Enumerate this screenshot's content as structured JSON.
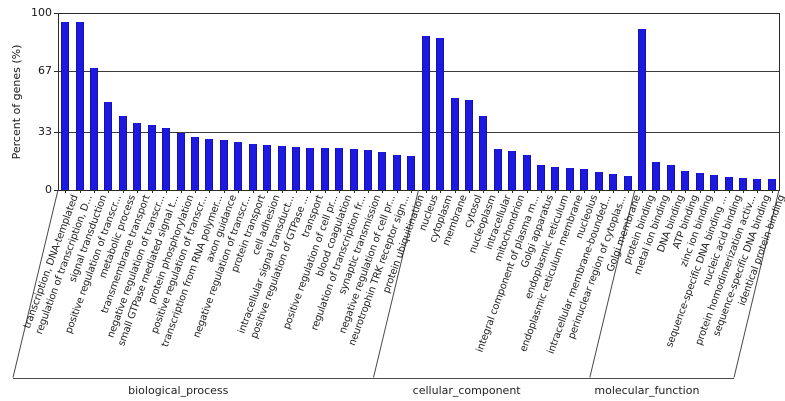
{
  "chart": {
    "bar_color": "#1e19e0",
    "bar_edge_color": "#1412a8",
    "axis_color": "#2b2b2b"
  },
  "chart_data": {
    "type": "bar",
    "title": "",
    "xlabel": "",
    "ylabel": "Percent of genes (%)",
    "ylim": [
      0,
      100
    ],
    "yticks": [
      0,
      33,
      67,
      100
    ],
    "grid": "horizontal",
    "legend_position": "none",
    "groups": [
      {
        "name": "biological_process",
        "categories": [
          "transcription, DNA-templated",
          "regulation of transcription, D...",
          "signal transduction",
          "positive regulation of transcr...",
          "metabolic process",
          "transmembrane transport",
          "negative regulation of transcr...",
          "small GTPase mediated signal t...",
          "protein phosphorylation",
          "positive regulation of transcr...",
          "transcription from RNA polymer...",
          "axon guidance",
          "negative regulation of transcr...",
          "protein transport",
          "cell adhesion",
          "intracellular signal transduct...",
          "positive regulation of GTPase ...",
          "transport",
          "positive regulation of cell pr...",
          "blood coagulation",
          "regulation of transcription fr...",
          "synaptic transmission",
          "negative regulation of cell pr...",
          "neurotrophin TRK receptor sign...",
          "protein ubiquitination"
        ],
        "values": [
          95,
          95,
          69,
          50,
          42,
          38,
          37,
          35,
          32,
          30,
          29,
          28,
          27,
          26,
          25.5,
          25,
          24.5,
          24,
          24,
          23.5,
          23,
          22.5,
          21.5,
          20,
          19
        ]
      },
      {
        "name": "cellular_component",
        "categories": [
          "nucleus",
          "cytoplasm",
          "membrane",
          "cytosol",
          "nucleoplasm",
          "intracellular",
          "mitochondrion",
          "integral component of plasma m...",
          "Golgi apparatus",
          "endoplasmic reticulum",
          "endoplasmic reticulum membrane",
          "nucleolus",
          "intracellular membrane-bounded...",
          "perinuclear region of cytoplas...",
          "Golgi membrane"
        ],
        "values": [
          87,
          86,
          52,
          51,
          42,
          23,
          22,
          20,
          14,
          13,
          12.5,
          12,
          10,
          9,
          8
        ]
      },
      {
        "name": "molecular_function",
        "categories": [
          "protein binding",
          "metal ion binding",
          "DNA binding",
          "ATP binding",
          "zinc ion binding",
          "sequence-specific DNA binding ...",
          "nucleic acid binding",
          "protein homodimerization activ...",
          "sequence-specific DNA binding",
          "identical protein binding"
        ],
        "values": [
          91,
          16,
          14,
          11,
          9.5,
          8.5,
          7.5,
          7,
          6,
          6
        ]
      }
    ]
  }
}
